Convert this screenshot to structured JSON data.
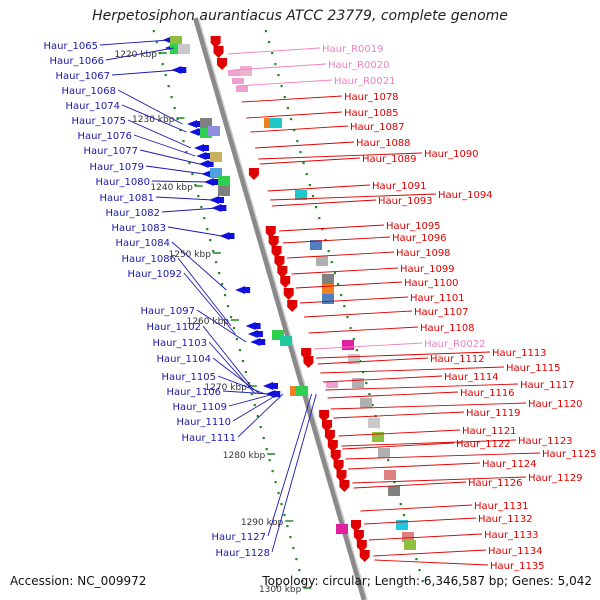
{
  "title": "Herpetosiphon aurantiacus ATCC 23779, complete genome",
  "accession": "Accession: NC_009972",
  "summary": "Topology: circular; Length: 6,346,587 bp; Genes: 5,042",
  "ruler_labels": [
    "1220 kbp",
    "1230 kbp",
    "1240 kbp",
    "1250 kbp",
    "1260 kbp",
    "1270 kbp",
    "1280 kbp",
    "1290 kbp",
    "1300 kbp"
  ],
  "colors": {
    "left_labels": "#1a1ab0",
    "right_labels": "#e00000",
    "rna_labels": "#f080c0",
    "backbone": "#8a8a8a",
    "ticks": "#1d8a1d"
  },
  "left_genes": [
    "Haur_1065",
    "Haur_1066",
    "Haur_1067",
    "Haur_1068",
    "Haur_1074",
    "Haur_1075",
    "Haur_1076",
    "Haur_1077",
    "Haur_1079",
    "Haur_1080",
    "Haur_1081",
    "Haur_1082",
    "Haur_1083",
    "Haur_1084",
    "Haur_1086",
    "Haur_1092",
    "Haur_1097",
    "Haur_1102",
    "Haur_1103",
    "Haur_1104",
    "Haur_1105",
    "Haur_1106",
    "Haur_1109",
    "Haur_1110",
    "Haur_1111",
    "Haur_1127",
    "Haur_1128"
  ],
  "right_genes": [
    {
      "label": "Haur_R0019",
      "kind": "rna"
    },
    {
      "label": "Haur_R0020",
      "kind": "rna"
    },
    {
      "label": "Haur_R0021",
      "kind": "rna"
    },
    {
      "label": "Haur_1078",
      "kind": "gene"
    },
    {
      "label": "Haur_1085",
      "kind": "gene"
    },
    {
      "label": "Haur_1087",
      "kind": "gene"
    },
    {
      "label": "Haur_1088",
      "kind": "gene"
    },
    {
      "label": "Haur_1089",
      "kind": "gene"
    },
    {
      "label": "Haur_1090",
      "kind": "gene"
    },
    {
      "label": "Haur_1091",
      "kind": "gene"
    },
    {
      "label": "Haur_1093",
      "kind": "gene"
    },
    {
      "label": "Haur_1094",
      "kind": "gene"
    },
    {
      "label": "Haur_1095",
      "kind": "gene"
    },
    {
      "label": "Haur_1096",
      "kind": "gene"
    },
    {
      "label": "Haur_1098",
      "kind": "gene"
    },
    {
      "label": "Haur_1099",
      "kind": "gene"
    },
    {
      "label": "Haur_1100",
      "kind": "gene"
    },
    {
      "label": "Haur_1101",
      "kind": "gene"
    },
    {
      "label": "Haur_1107",
      "kind": "gene"
    },
    {
      "label": "Haur_1108",
      "kind": "gene"
    },
    {
      "label": "Haur_R0022",
      "kind": "rna"
    },
    {
      "label": "Haur_1112",
      "kind": "gene"
    },
    {
      "label": "Haur_1113",
      "kind": "gene"
    },
    {
      "label": "Haur_1114",
      "kind": "gene"
    },
    {
      "label": "Haur_1115",
      "kind": "gene"
    },
    {
      "label": "Haur_1116",
      "kind": "gene"
    },
    {
      "label": "Haur_1117",
      "kind": "gene"
    },
    {
      "label": "Haur_1119",
      "kind": "gene"
    },
    {
      "label": "Haur_1120",
      "kind": "gene"
    },
    {
      "label": "Haur_1121",
      "kind": "gene"
    },
    {
      "label": "Haur_1122",
      "kind": "gene"
    },
    {
      "label": "Haur_1123",
      "kind": "gene"
    },
    {
      "label": "Haur_1124",
      "kind": "gene"
    },
    {
      "label": "Haur_1125",
      "kind": "gene"
    },
    {
      "label": "Haur_1126",
      "kind": "gene"
    },
    {
      "label": "Haur_1129",
      "kind": "gene"
    },
    {
      "label": "Haur_1131",
      "kind": "gene"
    },
    {
      "label": "Haur_1132",
      "kind": "gene"
    },
    {
      "label": "Haur_1133",
      "kind": "gene"
    },
    {
      "label": "Haur_1134",
      "kind": "gene"
    },
    {
      "label": "Haur_1135",
      "kind": "gene"
    }
  ]
}
